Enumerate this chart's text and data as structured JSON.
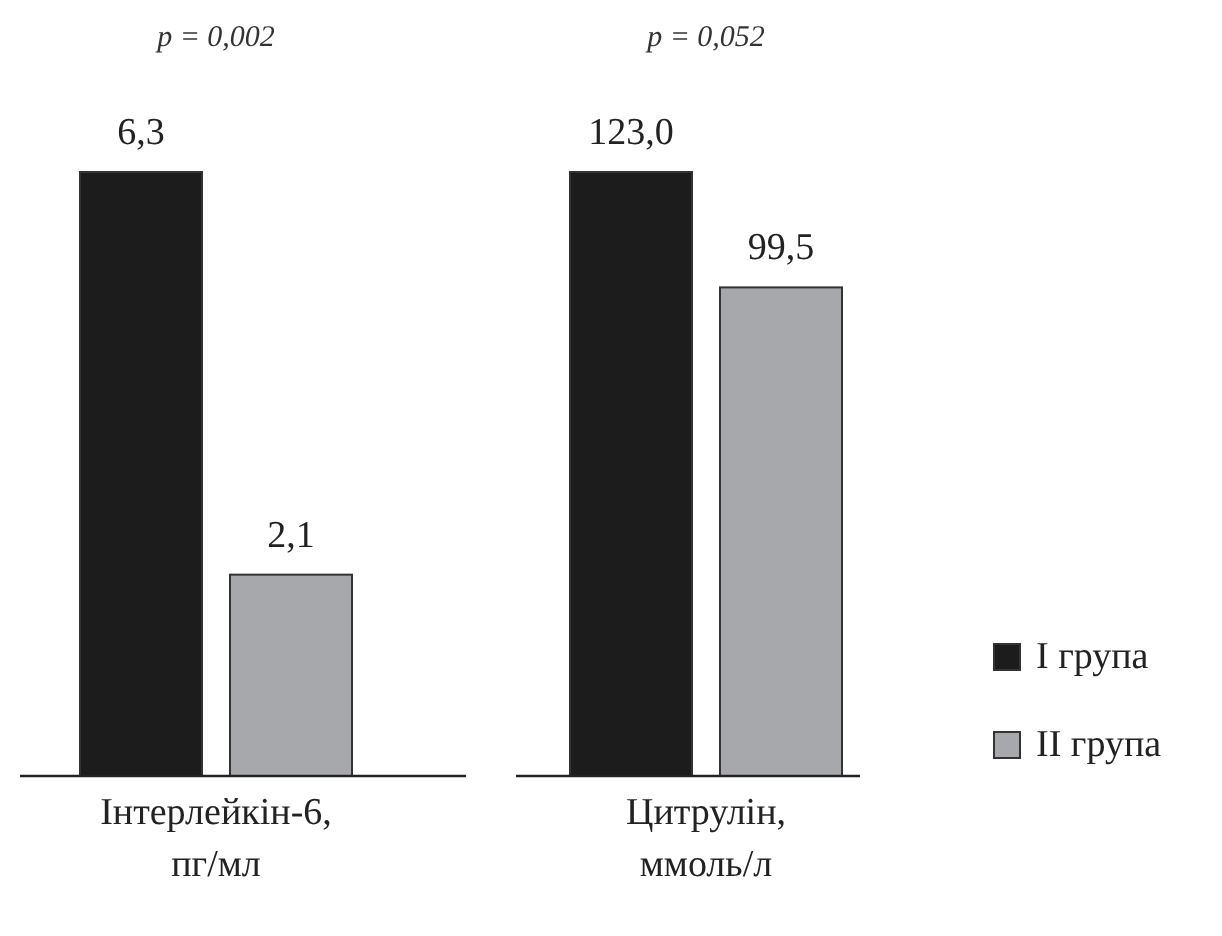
{
  "chart_data": [
    {
      "type": "bar",
      "categories": [
        "Інтерлейкін-6, пг/мл"
      ],
      "data_labels": true,
      "annotations": [
        "p = 0,002"
      ],
      "series": [
        {
          "color": "#1c1c1c",
          "values": [
            6.3
          ],
          "value_labels": [
            "6,3"
          ]
        },
        {
          "color": "#a7a8ac",
          "values": [
            2.1
          ],
          "value_labels": [
            "2,1"
          ]
        }
      ]
    },
    {
      "type": "bar",
      "categories": [
        "Цитрулін, ммоль/л"
      ],
      "data_labels": true,
      "annotations": [
        "p = 0,052"
      ],
      "legend": "right",
      "series": [
        {
          "name": "I група",
          "color": "#1c1c1c",
          "values": [
            123.0
          ],
          "value_labels": [
            "123,0"
          ]
        },
        {
          "name": "II група",
          "color": "#a7a8ac",
          "values": [
            99.5
          ],
          "value_labels": [
            "99,5"
          ]
        }
      ]
    }
  ]
}
